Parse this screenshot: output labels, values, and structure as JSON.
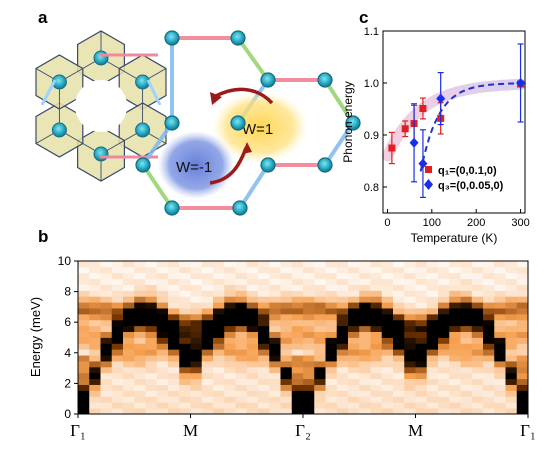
{
  "panels": {
    "a": "a",
    "b": "b",
    "c": "c"
  },
  "winding": {
    "neg_label": "W=-1",
    "pos_label": "W=1"
  },
  "chart_data": [
    {
      "type": "scatter",
      "panel": "c",
      "xlabel": "Temperature (K)",
      "ylabel": "Phonon energy",
      "xlim": [
        0,
        300
      ],
      "ylim": [
        0.75,
        1.1
      ],
      "xticks": [
        "0",
        "100",
        "200",
        "300"
      ],
      "yticks": [
        "0.8",
        "0.9",
        "1.0",
        "1.1"
      ],
      "legend_position": "bottom-right",
      "series": [
        {
          "name": "q₁=(0,0.1,0)",
          "color": "#e02020",
          "marker": "square",
          "points": [
            {
              "x": 10,
              "y": 0.875,
              "err": 0.03
            },
            {
              "x": 40,
              "y": 0.912,
              "err": 0.015
            },
            {
              "x": 60,
              "y": 0.922,
              "err": 0.035
            },
            {
              "x": 80,
              "y": 0.951,
              "err": 0.02
            },
            {
              "x": 120,
              "y": 0.932,
              "err": 0.03
            },
            {
              "x": 300,
              "y": 0.998,
              "err": 0.0
            }
          ]
        },
        {
          "name": "q₃=(0,0.05,0)",
          "color": "#1a2ee8",
          "marker": "diamond",
          "points": [
            {
              "x": 60,
              "y": 0.885,
              "err": 0.075
            },
            {
              "x": 80,
              "y": 0.845,
              "err": 0.065
            },
            {
              "x": 120,
              "y": 0.97,
              "err": 0.05
            },
            {
              "x": 300,
              "y": 1.0,
              "err": 0.075
            }
          ]
        }
      ]
    },
    {
      "type": "heatmap",
      "panel": "b",
      "ylabel": "Energy (meV)",
      "ylim": [
        0,
        10
      ],
      "yticks": [
        "0",
        "2",
        "4",
        "6",
        "8",
        "10"
      ],
      "xticks": [
        "Γ₁",
        "M",
        "Γ₂",
        "M",
        "Γ₁"
      ],
      "colormap": [
        "#ffffff",
        "#f7a050",
        "#000000"
      ]
    }
  ]
}
